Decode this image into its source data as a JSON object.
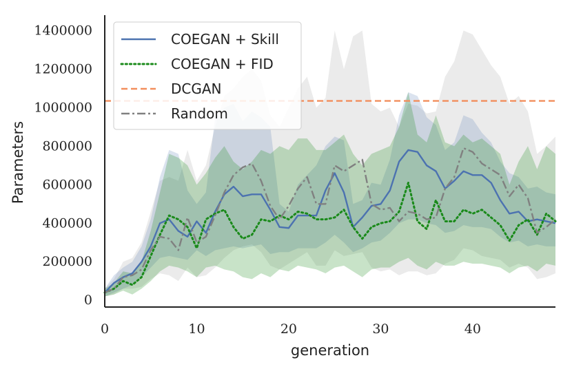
{
  "chart_data": {
    "type": "line",
    "xlabel": "generation",
    "ylabel": "Parameters",
    "xlim": [
      0,
      49
    ],
    "ylim": [
      -35000,
      1480000
    ],
    "xticks": [
      0,
      10,
      20,
      30,
      40
    ],
    "xtick_labels": [
      "0",
      "10",
      "20",
      "30",
      "40"
    ],
    "yticks": [
      0,
      200000,
      400000,
      600000,
      800000,
      1000000,
      1200000,
      1400000
    ],
    "ytick_labels": [
      "0",
      "200000",
      "400000",
      "600000",
      "800000",
      "1000000",
      "1200000",
      "1400000"
    ],
    "grid": false,
    "legend_position": "top-left",
    "x": [
      0,
      1,
      2,
      3,
      4,
      5,
      6,
      7,
      8,
      9,
      10,
      11,
      12,
      13,
      14,
      15,
      16,
      17,
      18,
      19,
      20,
      21,
      22,
      23,
      24,
      25,
      26,
      27,
      28,
      29,
      30,
      31,
      32,
      33,
      34,
      35,
      36,
      37,
      38,
      39,
      40,
      41,
      42,
      43,
      44,
      45,
      46,
      47,
      48,
      49
    ],
    "series": [
      {
        "name": "COEGAN + Skill",
        "color": "#4c72b0",
        "style": "solid",
        "values": [
          40000,
          90000,
          120000,
          140000,
          200000,
          280000,
          400000,
          420000,
          360000,
          330000,
          410000,
          350000,
          460000,
          550000,
          590000,
          540000,
          550000,
          550000,
          470000,
          380000,
          375000,
          440000,
          440000,
          440000,
          570000,
          660000,
          560000,
          380000,
          430000,
          490000,
          500000,
          570000,
          720000,
          780000,
          770000,
          700000,
          670000,
          580000,
          620000,
          670000,
          650000,
          650000,
          610000,
          520000,
          450000,
          460000,
          410000,
          420000,
          410000,
          400000
        ],
        "band_upper": [
          60000,
          130000,
          170000,
          200000,
          280000,
          420000,
          640000,
          780000,
          760000,
          570000,
          500000,
          560000,
          950000,
          1000000,
          1020000,
          930000,
          980000,
          950000,
          900000,
          500000,
          460000,
          600000,
          650000,
          700000,
          800000,
          850000,
          830000,
          500000,
          520000,
          610000,
          600000,
          730000,
          960000,
          1080000,
          1060000,
          950000,
          910000,
          780000,
          820000,
          960000,
          940000,
          870000,
          820000,
          720000,
          660000,
          640000,
          580000,
          590000,
          560000,
          550000
        ],
        "band_lower": [
          20000,
          40000,
          60000,
          80000,
          120000,
          170000,
          220000,
          230000,
          220000,
          210000,
          260000,
          230000,
          260000,
          270000,
          280000,
          270000,
          280000,
          290000,
          240000,
          250000,
          250000,
          270000,
          270000,
          270000,
          300000,
          340000,
          300000,
          250000,
          270000,
          300000,
          310000,
          350000,
          400000,
          420000,
          420000,
          400000,
          390000,
          350000,
          360000,
          390000,
          380000,
          380000,
          370000,
          330000,
          300000,
          310000,
          280000,
          290000,
          280000,
          280000
        ]
      },
      {
        "name": "COEGAN + FID",
        "color": "#1a8a1a",
        "style": "dotted",
        "values": [
          40000,
          60000,
          100000,
          80000,
          120000,
          230000,
          340000,
          440000,
          420000,
          380000,
          270000,
          420000,
          450000,
          470000,
          380000,
          320000,
          340000,
          420000,
          410000,
          440000,
          420000,
          460000,
          450000,
          420000,
          420000,
          430000,
          470000,
          380000,
          320000,
          380000,
          400000,
          410000,
          460000,
          610000,
          410000,
          370000,
          520000,
          410000,
          410000,
          470000,
          450000,
          470000,
          430000,
          390000,
          310000,
          390000,
          420000,
          340000,
          450000,
          410000
        ],
        "band_upper": [
          60000,
          90000,
          150000,
          140000,
          200000,
          360000,
          560000,
          760000,
          740000,
          700000,
          600000,
          660000,
          740000,
          800000,
          720000,
          680000,
          720000,
          780000,
          760000,
          800000,
          780000,
          840000,
          840000,
          780000,
          780000,
          820000,
          860000,
          760000,
          700000,
          760000,
          780000,
          800000,
          900000,
          1080000,
          860000,
          820000,
          960000,
          820000,
          800000,
          860000,
          820000,
          840000,
          800000,
          760000,
          600000,
          720000,
          800000,
          680000,
          800000,
          760000
        ],
        "band_lower": [
          20000,
          30000,
          50000,
          30000,
          60000,
          100000,
          150000,
          180000,
          170000,
          150000,
          120000,
          170000,
          180000,
          160000,
          150000,
          120000,
          110000,
          140000,
          120000,
          160000,
          150000,
          180000,
          170000,
          160000,
          140000,
          170000,
          180000,
          150000,
          120000,
          160000,
          170000,
          170000,
          200000,
          220000,
          180000,
          160000,
          200000,
          180000,
          180000,
          200000,
          190000,
          190000,
          180000,
          170000,
          140000,
          170000,
          180000,
          150000,
          190000,
          180000
        ]
      },
      {
        "name": "DCGAN",
        "color": "#f28e5c",
        "style": "dashed",
        "constant": 1035000
      },
      {
        "name": "Random",
        "color": "#808080",
        "style": "dashdot",
        "values": [
          40000,
          60000,
          120000,
          130000,
          160000,
          260000,
          330000,
          320000,
          260000,
          430000,
          300000,
          330000,
          440000,
          560000,
          650000,
          690000,
          710000,
          620000,
          490000,
          420000,
          490000,
          580000,
          640000,
          500000,
          500000,
          700000,
          670000,
          700000,
          730000,
          500000,
          470000,
          480000,
          410000,
          460000,
          450000,
          420000,
          430000,
          580000,
          640000,
          790000,
          770000,
          710000,
          680000,
          650000,
          540000,
          600000,
          530000,
          350000,
          380000,
          420000
        ],
        "band_upper": [
          60000,
          110000,
          200000,
          220000,
          300000,
          460000,
          620000,
          640000,
          620000,
          780000,
          620000,
          700000,
          900000,
          1060000,
          1100000,
          1160000,
          1200000,
          1140000,
          960000,
          900000,
          1000000,
          1100000,
          1160000,
          1000000,
          1050000,
          1400000,
          1200000,
          1370000,
          1400000,
          1020000,
          980000,
          1000000,
          900000,
          1020000,
          1010000,
          970000,
          980000,
          1160000,
          1240000,
          1400000,
          1380000,
          1300000,
          1220000,
          1160000,
          1020000,
          1060000,
          980000,
          760000,
          800000,
          850000
        ],
        "band_lower": [
          20000,
          30000,
          60000,
          60000,
          70000,
          110000,
          140000,
          130000,
          100000,
          170000,
          120000,
          130000,
          170000,
          220000,
          260000,
          280000,
          290000,
          250000,
          180000,
          160000,
          190000,
          220000,
          250000,
          180000,
          180000,
          260000,
          230000,
          240000,
          250000,
          170000,
          150000,
          160000,
          130000,
          150000,
          150000,
          130000,
          140000,
          190000,
          210000,
          270000,
          260000,
          230000,
          220000,
          210000,
          170000,
          190000,
          170000,
          110000,
          120000,
          140000
        ]
      }
    ]
  }
}
